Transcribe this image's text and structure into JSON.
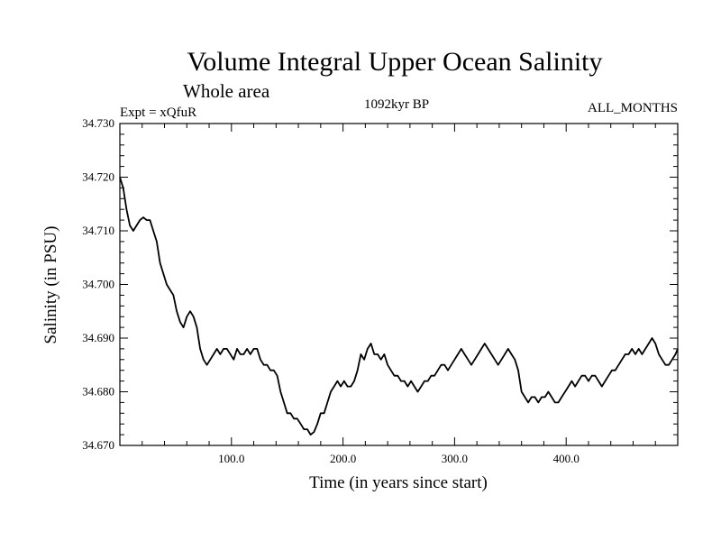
{
  "chart_data": {
    "type": "line",
    "title": "Volume Integral Upper Ocean Salinity",
    "subtitle": "Whole area",
    "expt_label": "Expt = xQfuR",
    "period_label": "1092kyr BP",
    "months_label": "ALL_MONTHS",
    "xlabel": "Time (in years since start)",
    "ylabel": "Salinity (in PSU)",
    "xlim": [
      0,
      500
    ],
    "ylim": [
      34.67,
      34.73
    ],
    "x_ticks": [
      100,
      200,
      300,
      400
    ],
    "x_tick_labels": [
      "100.0",
      "200.0",
      "300.0",
      "400.0"
    ],
    "y_ticks": [
      34.67,
      34.68,
      34.69,
      34.7,
      34.71,
      34.72,
      34.73
    ],
    "y_tick_labels": [
      "34.670",
      "34.680",
      "34.690",
      "34.700",
      "34.710",
      "34.720",
      "34.730"
    ],
    "grid": false,
    "series": [
      {
        "name": "Salinity",
        "x": [
          0,
          3,
          6,
          9,
          12,
          15,
          18,
          21,
          24,
          27,
          30,
          33,
          36,
          39,
          42,
          45,
          48,
          51,
          54,
          57,
          60,
          63,
          66,
          69,
          72,
          75,
          78,
          81,
          84,
          87,
          90,
          93,
          96,
          99,
          102,
          105,
          108,
          111,
          114,
          117,
          120,
          123,
          126,
          129,
          132,
          135,
          138,
          141,
          144,
          147,
          150,
          153,
          156,
          159,
          162,
          165,
          168,
          171,
          174,
          177,
          180,
          183,
          186,
          189,
          192,
          195,
          198,
          201,
          204,
          207,
          210,
          213,
          216,
          219,
          222,
          225,
          228,
          231,
          234,
          237,
          240,
          243,
          246,
          249,
          252,
          255,
          258,
          261,
          264,
          267,
          270,
          273,
          276,
          279,
          282,
          285,
          288,
          291,
          294,
          297,
          300,
          303,
          306,
          309,
          312,
          315,
          318,
          321,
          324,
          327,
          330,
          333,
          336,
          339,
          342,
          345,
          348,
          351,
          354,
          357,
          360,
          363,
          366,
          369,
          372,
          375,
          378,
          381,
          384,
          387,
          390,
          393,
          396,
          399,
          402,
          405,
          408,
          411,
          414,
          417,
          420,
          423,
          426,
          429,
          432,
          435,
          438,
          441,
          444,
          447,
          450,
          453,
          456,
          459,
          462,
          465,
          468,
          471,
          474,
          477,
          480,
          483,
          486,
          489,
          492,
          495,
          498,
          500
        ],
        "values": [
          34.72,
          34.718,
          34.714,
          34.711,
          34.71,
          34.711,
          34.712,
          34.7125,
          34.712,
          34.712,
          34.71,
          34.708,
          34.704,
          34.702,
          34.7,
          34.699,
          34.698,
          34.695,
          34.693,
          34.692,
          34.694,
          34.695,
          34.694,
          34.692,
          34.688,
          34.686,
          34.685,
          34.686,
          34.687,
          34.688,
          34.687,
          34.688,
          34.688,
          34.687,
          34.686,
          34.688,
          34.687,
          34.687,
          34.688,
          34.687,
          34.688,
          34.688,
          34.686,
          34.685,
          34.685,
          34.684,
          34.684,
          34.683,
          34.68,
          34.678,
          34.676,
          34.676,
          34.675,
          34.675,
          34.674,
          34.673,
          34.673,
          34.672,
          34.6725,
          34.674,
          34.676,
          34.676,
          34.678,
          34.68,
          34.681,
          34.682,
          34.681,
          34.682,
          34.681,
          34.681,
          34.682,
          34.684,
          34.687,
          34.686,
          34.688,
          34.689,
          34.687,
          34.687,
          34.686,
          34.687,
          34.685,
          34.684,
          34.683,
          34.683,
          34.682,
          34.682,
          34.681,
          34.682,
          34.681,
          34.68,
          34.681,
          34.682,
          34.682,
          34.683,
          34.683,
          34.684,
          34.685,
          34.685,
          34.684,
          34.685,
          34.686,
          34.687,
          34.688,
          34.687,
          34.686,
          34.685,
          34.686,
          34.687,
          34.688,
          34.689,
          34.688,
          34.687,
          34.686,
          34.685,
          34.686,
          34.687,
          34.688,
          34.687,
          34.686,
          34.684,
          34.68,
          34.679,
          34.678,
          34.679,
          34.679,
          34.678,
          34.679,
          34.679,
          34.68,
          34.679,
          34.678,
          34.678,
          34.679,
          34.68,
          34.681,
          34.682,
          34.681,
          34.682,
          34.683,
          34.683,
          34.682,
          34.683,
          34.683,
          34.682,
          34.681,
          34.682,
          34.683,
          34.684,
          34.684,
          34.685,
          34.686,
          34.687,
          34.687,
          34.688,
          34.687,
          34.688,
          34.687,
          34.688,
          34.689,
          34.69,
          34.689,
          34.687,
          34.686,
          34.685,
          34.685,
          34.686,
          34.687,
          34.688
        ]
      }
    ]
  }
}
